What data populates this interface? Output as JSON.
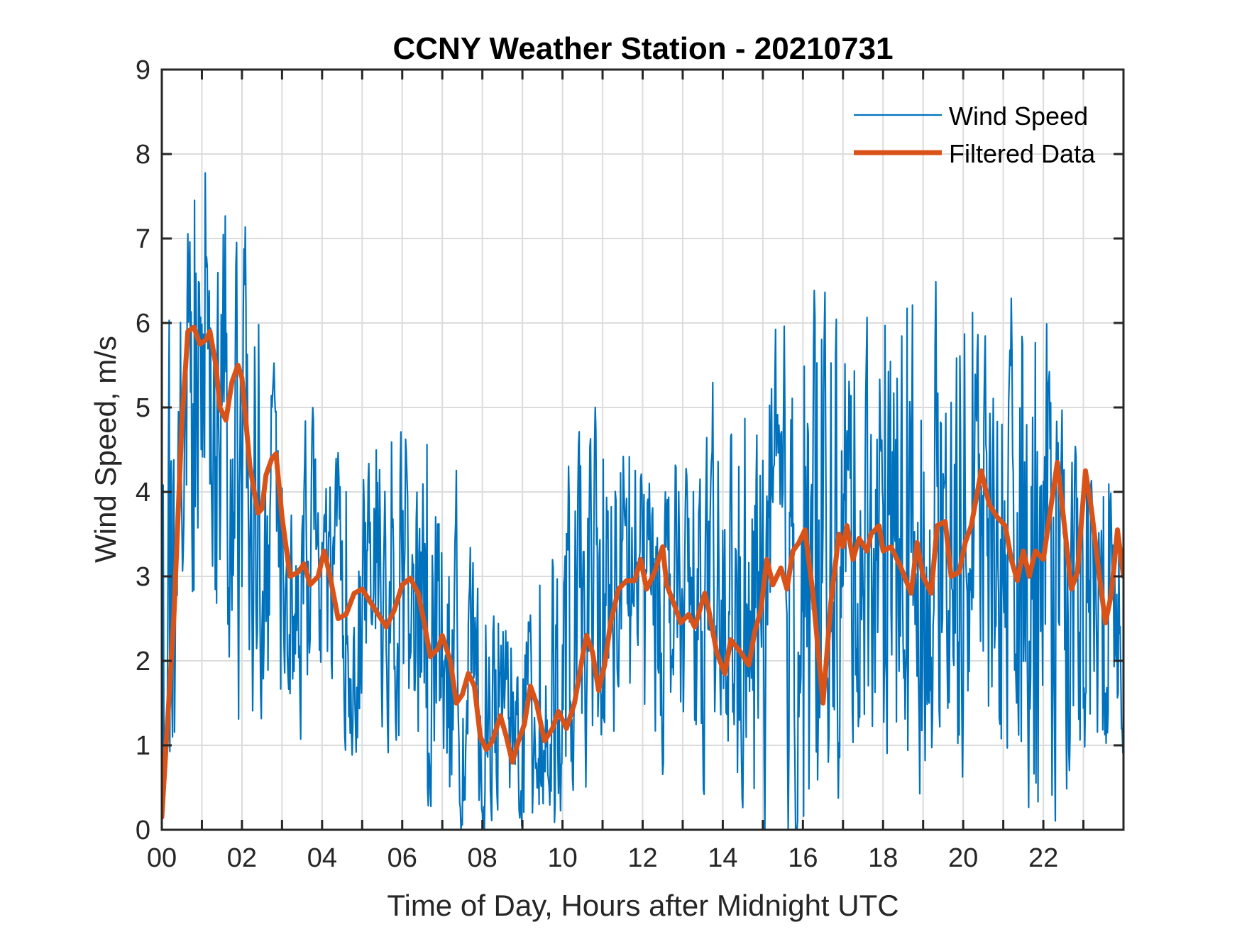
{
  "chart_data": {
    "type": "line",
    "title": "CCNY Weather Station - 20210731",
    "xlabel": "Time of Day, Hours after Midnight UTC",
    "ylabel": "Wind Speed, m/s",
    "xlim": [
      0,
      24
    ],
    "ylim": [
      0,
      9
    ],
    "grid": true,
    "x_gridlines_every_hours": 1,
    "x_ticks": [
      0,
      2,
      4,
      6,
      8,
      10,
      12,
      14,
      16,
      18,
      20,
      22
    ],
    "x_tick_labels": [
      "00",
      "02",
      "04",
      "06",
      "08",
      "10",
      "12",
      "14",
      "16",
      "18",
      "20",
      "22"
    ],
    "y_ticks": [
      0,
      1,
      2,
      3,
      4,
      5,
      6,
      7,
      8,
      9
    ],
    "y_tick_labels": [
      "0",
      "1",
      "2",
      "3",
      "4",
      "5",
      "6",
      "7",
      "8",
      "9"
    ],
    "legend": {
      "placement": "top-right",
      "boxed": false
    },
    "series": [
      {
        "name": "Wind Speed",
        "color": "#0072BD",
        "style": "thin-line",
        "description": "High-frequency raw samples; plotted as noisy envelope around filtered trend",
        "envelope_hourly": {
          "x": [
            0,
            1,
            2,
            3,
            4,
            5,
            6,
            7,
            8,
            9,
            10,
            11,
            12,
            13,
            14,
            15,
            16,
            17,
            18,
            19,
            20,
            21,
            22,
            23,
            24
          ],
          "min": [
            0.2,
            3.0,
            1.4,
            1.5,
            1.2,
            1.3,
            1.0,
            0.2,
            0.0,
            0.0,
            0.1,
            0.9,
            1.2,
            0.9,
            0.8,
            0.2,
            0.1,
            0.8,
            1.2,
            0.8,
            1.0,
            1.0,
            0.1,
            1.0,
            1.2
          ],
          "max": [
            5.6,
            8.05,
            7.1,
            4.9,
            4.3,
            4.3,
            5.0,
            4.3,
            2.6,
            2.4,
            3.9,
            5.0,
            4.4,
            4.3,
            4.6,
            5.1,
            6.1,
            6.3,
            6.3,
            6.2,
            6.35,
            5.6,
            6.2,
            4.3,
            4.1
          ]
        }
      },
      {
        "name": "Filtered Data",
        "color": "#D95319",
        "style": "thick-line",
        "x": [
          0.0,
          0.3,
          0.5,
          0.65,
          0.8,
          0.95,
          1.1,
          1.2,
          1.35,
          1.45,
          1.6,
          1.75,
          1.9,
          2.0,
          2.2,
          2.4,
          2.5,
          2.6,
          2.75,
          2.85,
          3.0,
          3.2,
          3.4,
          3.55,
          3.7,
          3.9,
          4.05,
          4.2,
          4.4,
          4.6,
          4.8,
          5.0,
          5.2,
          5.4,
          5.6,
          5.8,
          6.0,
          6.2,
          6.4,
          6.55,
          6.7,
          6.9,
          7.0,
          7.2,
          7.35,
          7.5,
          7.65,
          7.8,
          7.95,
          8.1,
          8.25,
          8.45,
          8.6,
          8.75,
          8.9,
          9.05,
          9.2,
          9.35,
          9.55,
          9.75,
          9.9,
          10.1,
          10.3,
          10.5,
          10.6,
          10.75,
          10.9,
          11.05,
          11.2,
          11.4,
          11.6,
          11.8,
          11.95,
          12.1,
          12.3,
          12.5,
          12.6,
          12.8,
          12.95,
          13.15,
          13.3,
          13.55,
          13.65,
          13.85,
          14.05,
          14.2,
          14.45,
          14.65,
          14.8,
          14.95,
          15.1,
          15.25,
          15.45,
          15.6,
          15.75,
          15.9,
          16.05,
          16.25,
          16.5,
          16.7,
          16.9,
          17.0,
          17.1,
          17.25,
          17.4,
          17.6,
          17.7,
          17.9,
          18.0,
          18.2,
          18.45,
          18.7,
          18.85,
          19.0,
          19.2,
          19.35,
          19.55,
          19.7,
          19.9,
          20.05,
          20.2,
          20.45,
          20.65,
          20.85,
          21.05,
          21.2,
          21.35,
          21.5,
          21.65,
          21.8,
          22.0,
          22.15,
          22.35,
          22.55,
          22.7,
          22.85,
          23.05,
          23.2,
          23.4,
          23.55,
          23.7,
          23.85,
          24.0
        ],
        "y": [
          0.15,
          2.5,
          4.8,
          5.9,
          5.95,
          5.75,
          5.8,
          5.9,
          5.5,
          5.0,
          4.85,
          5.3,
          5.5,
          5.35,
          4.3,
          3.75,
          3.8,
          4.2,
          4.4,
          4.45,
          3.7,
          3.0,
          3.05,
          3.15,
          2.9,
          3.0,
          3.3,
          3.0,
          2.5,
          2.55,
          2.8,
          2.85,
          2.7,
          2.55,
          2.4,
          2.6,
          2.9,
          2.98,
          2.8,
          2.45,
          2.05,
          2.15,
          2.3,
          2.0,
          1.5,
          1.6,
          1.85,
          1.7,
          1.1,
          0.95,
          1.05,
          1.35,
          1.1,
          0.8,
          1.05,
          1.25,
          1.7,
          1.5,
          1.05,
          1.2,
          1.4,
          1.2,
          1.5,
          2.05,
          2.3,
          2.1,
          1.65,
          1.95,
          2.45,
          2.85,
          2.95,
          2.95,
          3.2,
          2.85,
          3.05,
          3.35,
          2.9,
          2.65,
          2.45,
          2.55,
          2.4,
          2.8,
          2.6,
          2.1,
          1.85,
          2.25,
          2.1,
          1.95,
          2.35,
          2.6,
          3.2,
          2.9,
          3.1,
          2.85,
          3.3,
          3.4,
          3.55,
          2.8,
          1.5,
          2.7,
          3.5,
          3.35,
          3.6,
          3.2,
          3.45,
          3.3,
          3.5,
          3.6,
          3.3,
          3.35,
          3.1,
          2.8,
          3.4,
          3.0,
          2.8,
          3.6,
          3.65,
          3.0,
          3.05,
          3.4,
          3.6,
          4.25,
          3.85,
          3.7,
          3.6,
          3.2,
          2.95,
          3.3,
          3.0,
          3.3,
          3.2,
          3.7,
          4.35,
          3.5,
          2.85,
          3.05,
          4.25,
          3.8,
          3.0,
          2.45,
          2.8,
          3.55,
          3.0
        ]
      }
    ]
  }
}
